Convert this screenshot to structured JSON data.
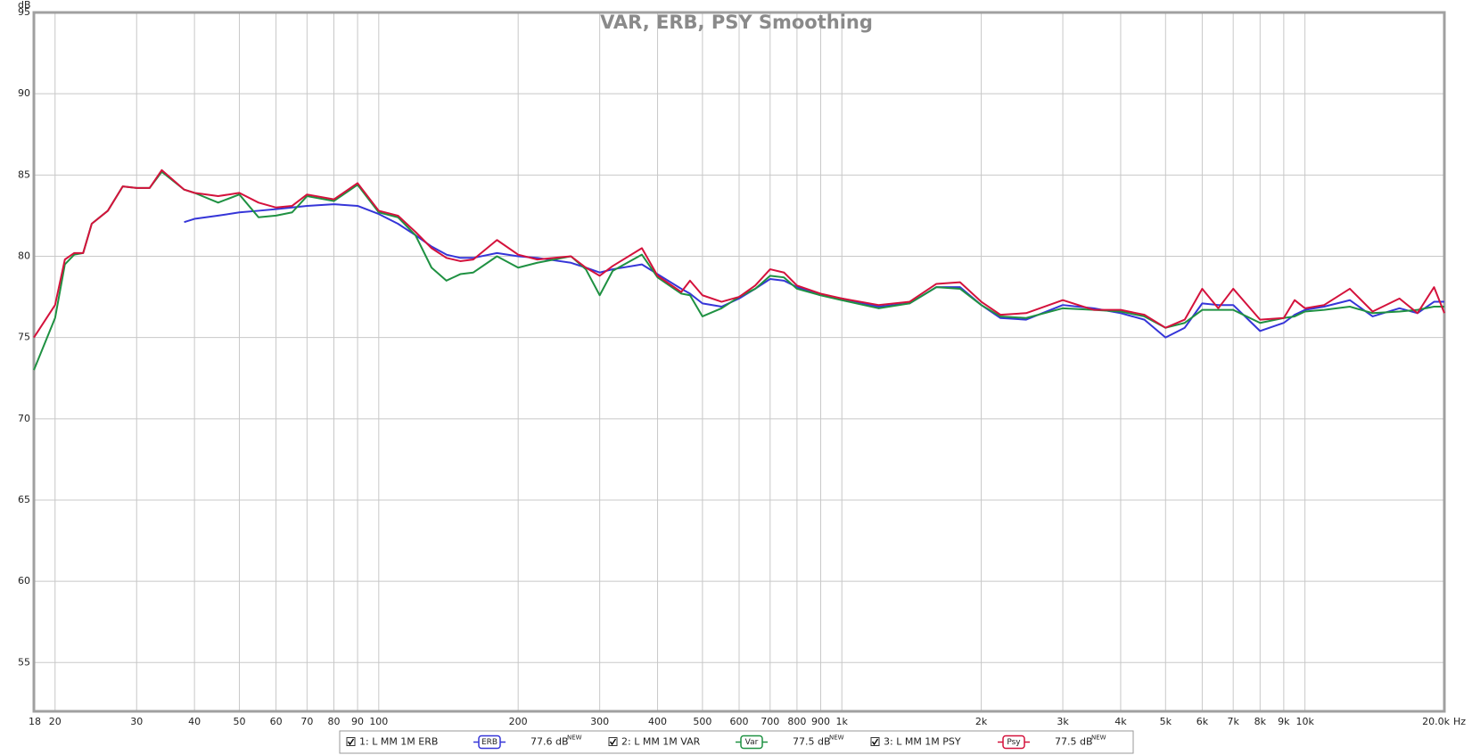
{
  "chart_data": {
    "type": "line",
    "title": "VAR, ERB, PSY Smoothing",
    "xlabel": "Hz",
    "ylabel": "dB",
    "log_x": true,
    "grid": true,
    "xlim": [
      18,
      20000
    ],
    "ylim": [
      52,
      95
    ],
    "yticks": [
      55,
      60,
      65,
      70,
      75,
      80,
      85,
      90,
      95
    ],
    "xticks": [
      18,
      20,
      30,
      40,
      50,
      60,
      70,
      80,
      90,
      100,
      200,
      300,
      400,
      500,
      600,
      700,
      800,
      900,
      {
        "value": 1000,
        "label": "1k"
      },
      {
        "value": 2000,
        "label": "2k"
      },
      {
        "value": 3000,
        "label": "3k"
      },
      {
        "value": 4000,
        "label": "4k"
      },
      {
        "value": 5000,
        "label": "5k"
      },
      {
        "value": 6000,
        "label": "6k"
      },
      {
        "value": 7000,
        "label": "7k"
      },
      {
        "value": 8000,
        "label": "8k"
      },
      {
        "value": 9000,
        "label": "9k"
      },
      {
        "value": 10000,
        "label": "10k"
      },
      {
        "value": 20000,
        "label": "20.0k"
      }
    ],
    "x": [
      18,
      20,
      21,
      22,
      23,
      24,
      26,
      28,
      30,
      32,
      34,
      38,
      40,
      45,
      50,
      55,
      60,
      65,
      70,
      80,
      90,
      100,
      110,
      120,
      130,
      140,
      150,
      160,
      180,
      200,
      220,
      260,
      280,
      300,
      320,
      370,
      400,
      450,
      470,
      500,
      550,
      600,
      650,
      700,
      750,
      800,
      900,
      1000,
      1200,
      1400,
      1600,
      1800,
      2000,
      2200,
      2500,
      3000,
      3500,
      4000,
      4500,
      5000,
      5500,
      6000,
      6500,
      7000,
      8000,
      9000,
      9500,
      10000,
      11000,
      12500,
      14000,
      16000,
      17500,
      19000,
      20000
    ],
    "series": [
      {
        "name": "1: L MM 1M ERB",
        "tag": "ERB",
        "level": "77.6 dB",
        "badge": "NEW",
        "color": "#3535d8",
        "values": [
          null,
          null,
          null,
          null,
          null,
          null,
          null,
          null,
          null,
          null,
          null,
          82.1,
          82.3,
          82.5,
          82.7,
          82.8,
          82.9,
          83.0,
          83.1,
          83.2,
          83.1,
          82.6,
          82.0,
          81.3,
          80.6,
          80.1,
          79.9,
          79.9,
          80.2,
          80.0,
          79.9,
          79.6,
          79.3,
          79.0,
          79.2,
          79.5,
          78.9,
          78.0,
          77.7,
          77.1,
          76.9,
          77.4,
          78.0,
          78.6,
          78.5,
          78.1,
          77.6,
          77.4,
          76.9,
          77.1,
          78.1,
          78.1,
          77.0,
          76.2,
          76.1,
          77.0,
          76.8,
          76.5,
          76.1,
          75.0,
          75.6,
          77.1,
          77.0,
          77.0,
          75.4,
          75.9,
          76.4,
          76.7,
          76.9,
          77.3,
          76.3,
          76.8,
          76.5,
          77.2,
          77.2
        ]
      },
      {
        "name": "2: L MM 1M VAR",
        "tag": "Var",
        "level": "77.5 dB",
        "badge": "NEW",
        "color": "#1f9142",
        "values": [
          73.0,
          76.2,
          79.5,
          80.1,
          80.2,
          82.0,
          82.8,
          84.3,
          84.2,
          84.2,
          85.2,
          84.1,
          83.9,
          83.3,
          83.8,
          82.4,
          82.5,
          82.7,
          83.7,
          83.4,
          84.4,
          82.7,
          82.4,
          81.3,
          79.3,
          78.5,
          78.9,
          79.0,
          80.0,
          79.3,
          79.6,
          80.0,
          79.2,
          77.6,
          79.1,
          80.1,
          78.7,
          77.7,
          77.6,
          76.3,
          76.8,
          77.5,
          78.0,
          78.8,
          78.7,
          78.0,
          77.6,
          77.3,
          76.8,
          77.1,
          78.1,
          78.0,
          77.0,
          76.3,
          76.2,
          76.8,
          76.7,
          76.6,
          76.3,
          75.6,
          75.9,
          76.7,
          76.7,
          76.7,
          75.9,
          76.2,
          76.3,
          76.6,
          76.7,
          76.9,
          76.5,
          76.6,
          76.7,
          76.9,
          76.9
        ]
      },
      {
        "name": "3: L MM 1M PSY",
        "tag": "Psy",
        "level": "77.5 dB",
        "badge": "NEW",
        "color": "#d4123c",
        "values": [
          75.0,
          77.0,
          79.8,
          80.2,
          80.2,
          82.0,
          82.8,
          84.3,
          84.2,
          84.2,
          85.3,
          84.1,
          83.9,
          83.7,
          83.9,
          83.3,
          83.0,
          83.1,
          83.8,
          83.5,
          84.5,
          82.8,
          82.5,
          81.5,
          80.5,
          79.9,
          79.7,
          79.8,
          81.0,
          80.1,
          79.8,
          80.0,
          79.3,
          78.8,
          79.4,
          80.5,
          78.8,
          77.8,
          78.5,
          77.6,
          77.2,
          77.5,
          78.2,
          79.2,
          79.0,
          78.2,
          77.7,
          77.4,
          77.0,
          77.2,
          78.3,
          78.4,
          77.2,
          76.4,
          76.5,
          77.3,
          76.7,
          76.7,
          76.4,
          75.6,
          76.1,
          78.0,
          76.8,
          78.0,
          76.1,
          76.2,
          77.3,
          76.8,
          77.0,
          78.0,
          76.6,
          77.4,
          76.5,
          78.1,
          76.5
        ]
      }
    ]
  }
}
